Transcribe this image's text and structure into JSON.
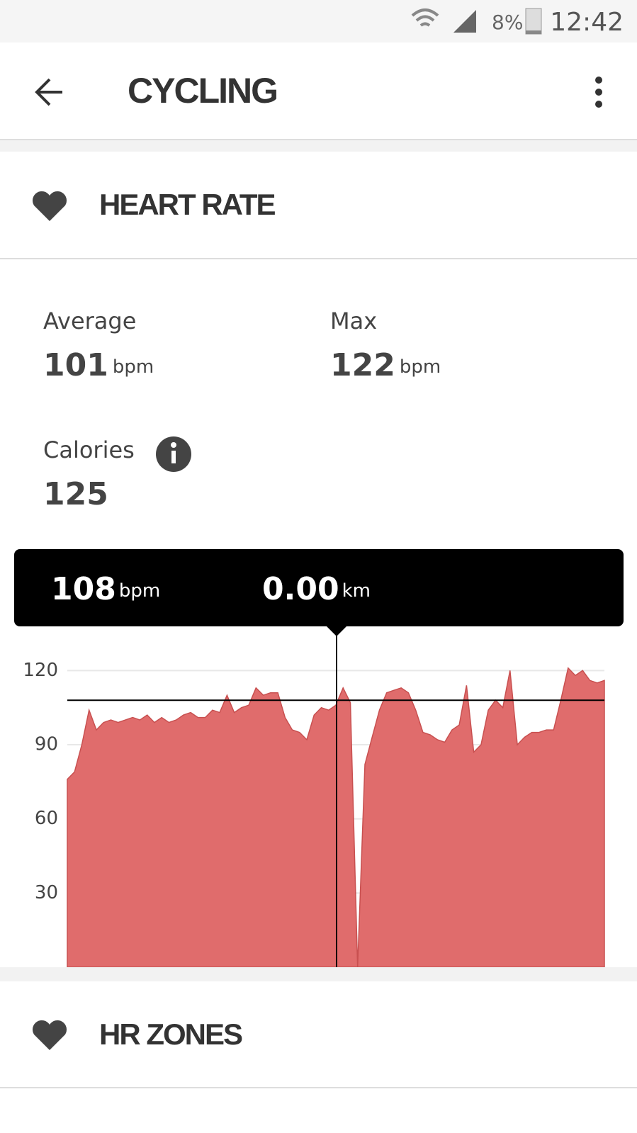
{
  "status_bar": {
    "battery": "8%",
    "time": "12:42"
  },
  "header": {
    "title": "CYCLING"
  },
  "section": {
    "title": "HEART RATE"
  },
  "stats": {
    "average": {
      "label": "Average",
      "value": "101",
      "unit": "bpm"
    },
    "max": {
      "label": "Max",
      "value": "122",
      "unit": "bpm"
    },
    "calories": {
      "label": "Calories",
      "value": "125"
    }
  },
  "chart_data": {
    "type": "area",
    "color": "#e06c6c",
    "tooltip": {
      "hr": 108,
      "hr_unit": "bpm",
      "distance": "0.00",
      "distance_unit": "km"
    },
    "ylim": [
      0,
      135
    ],
    "yticks": [
      30,
      60,
      90,
      120
    ],
    "grid": true,
    "values": [
      76,
      79,
      90,
      104,
      96,
      99,
      100,
      99,
      100,
      101,
      100,
      102,
      99,
      101,
      99,
      100,
      102,
      103,
      101,
      101,
      104,
      103,
      110,
      103,
      105,
      106,
      113,
      110,
      111,
      111,
      101,
      96,
      95,
      92,
      102,
      105,
      104,
      106,
      113,
      107,
      0,
      82,
      93,
      104,
      111,
      112,
      113,
      111,
      104,
      95,
      94,
      92,
      91,
      96,
      98,
      114,
      87,
      90,
      104,
      108,
      105,
      120,
      90,
      93,
      95,
      95,
      96,
      96,
      108,
      121,
      118,
      120,
      116,
      115,
      116
    ]
  },
  "footer_section": {
    "title": "HR ZONES"
  }
}
